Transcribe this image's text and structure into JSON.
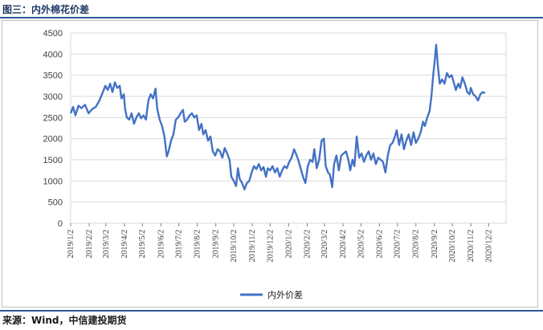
{
  "header": {
    "title": "图三：内外棉花价差"
  },
  "footer": {
    "source": "来源：Wind，中信建投期货"
  },
  "colors": {
    "series": "#4472c4",
    "rule": "#2f5597",
    "grid": "#d9d9d9",
    "title": "#1f3864"
  },
  "chart_data": {
    "type": "line",
    "grid": "horizontal",
    "legend": "bottom-center",
    "x_range": [
      "2019-01-02",
      "2020-12-31"
    ],
    "ylim": [
      0,
      4500
    ],
    "y_ticks": [
      0,
      500,
      1000,
      1500,
      2000,
      2500,
      3000,
      3500,
      4000,
      4500
    ],
    "x_tick_labels": [
      "2019/1/2",
      "2019/2/2",
      "2019/3/2",
      "2019/4/2",
      "2019/5/2",
      "2019/6/2",
      "2019/7/2",
      "2019/8/2",
      "2019/9/2",
      "2019/10/2",
      "2019/11/2",
      "2019/12/2",
      "2020/1/2",
      "2020/2/2",
      "2020/3/2",
      "2020/4/2",
      "2020/5/2",
      "2020/6/2",
      "2020/7/2",
      "2020/8/2",
      "2020/9/2",
      "2020/10/2",
      "2020/11/2",
      "2020/12/2"
    ],
    "series": [
      {
        "name": "内外价差",
        "points": [
          [
            "2019-01-02",
            2600
          ],
          [
            "2019-01-06",
            2750
          ],
          [
            "2019-01-10",
            2550
          ],
          [
            "2019-01-15",
            2780
          ],
          [
            "2019-01-20",
            2720
          ],
          [
            "2019-01-26",
            2800
          ],
          [
            "2019-02-01",
            2600
          ],
          [
            "2019-02-07",
            2700
          ],
          [
            "2019-02-13",
            2750
          ],
          [
            "2019-02-19",
            2900
          ],
          [
            "2019-02-25",
            3100
          ],
          [
            "2019-03-01",
            3250
          ],
          [
            "2019-03-05",
            3150
          ],
          [
            "2019-03-09",
            3300
          ],
          [
            "2019-03-13",
            3100
          ],
          [
            "2019-03-17",
            3330
          ],
          [
            "2019-03-21",
            3200
          ],
          [
            "2019-03-25",
            3250
          ],
          [
            "2019-03-28",
            2950
          ],
          [
            "2019-04-01",
            3050
          ],
          [
            "2019-04-03",
            2700
          ],
          [
            "2019-04-06",
            2500
          ],
          [
            "2019-04-10",
            2450
          ],
          [
            "2019-04-14",
            2600
          ],
          [
            "2019-04-18",
            2350
          ],
          [
            "2019-04-22",
            2500
          ],
          [
            "2019-04-26",
            2600
          ],
          [
            "2019-04-30",
            2480
          ],
          [
            "2019-05-04",
            2550
          ],
          [
            "2019-05-08",
            2450
          ],
          [
            "2019-05-12",
            2900
          ],
          [
            "2019-05-16",
            3050
          ],
          [
            "2019-05-20",
            2950
          ],
          [
            "2019-05-24",
            3180
          ],
          [
            "2019-05-27",
            2700
          ],
          [
            "2019-05-31",
            2450
          ],
          [
            "2019-06-04",
            2300
          ],
          [
            "2019-06-08",
            2050
          ],
          [
            "2019-06-12",
            1580
          ],
          [
            "2019-06-15",
            1700
          ],
          [
            "2019-06-19",
            1950
          ],
          [
            "2019-06-23",
            2100
          ],
          [
            "2019-06-27",
            2450
          ],
          [
            "2019-07-01",
            2500
          ],
          [
            "2019-07-05",
            2600
          ],
          [
            "2019-07-09",
            2680
          ],
          [
            "2019-07-12",
            2400
          ],
          [
            "2019-07-16",
            2450
          ],
          [
            "2019-07-20",
            2550
          ],
          [
            "2019-07-24",
            2600
          ],
          [
            "2019-07-28",
            2500
          ],
          [
            "2019-08-01",
            2550
          ],
          [
            "2019-08-05",
            2200
          ],
          [
            "2019-08-09",
            2350
          ],
          [
            "2019-08-12",
            2100
          ],
          [
            "2019-08-16",
            2200
          ],
          [
            "2019-08-20",
            1950
          ],
          [
            "2019-08-24",
            2050
          ],
          [
            "2019-08-28",
            1700
          ],
          [
            "2019-09-01",
            1600
          ],
          [
            "2019-09-05",
            1750
          ],
          [
            "2019-09-09",
            1700
          ],
          [
            "2019-09-13",
            1550
          ],
          [
            "2019-09-17",
            1780
          ],
          [
            "2019-09-21",
            1650
          ],
          [
            "2019-09-25",
            1500
          ],
          [
            "2019-09-28",
            1100
          ],
          [
            "2019-10-02",
            1000
          ],
          [
            "2019-10-06",
            880
          ],
          [
            "2019-10-09",
            1300
          ],
          [
            "2019-10-12",
            1050
          ],
          [
            "2019-10-16",
            950
          ],
          [
            "2019-10-20",
            800
          ],
          [
            "2019-10-24",
            950
          ],
          [
            "2019-10-28",
            1000
          ],
          [
            "2019-11-01",
            1200
          ],
          [
            "2019-11-05",
            1350
          ],
          [
            "2019-11-09",
            1280
          ],
          [
            "2019-11-13",
            1400
          ],
          [
            "2019-11-17",
            1250
          ],
          [
            "2019-11-21",
            1330
          ],
          [
            "2019-11-25",
            1100
          ],
          [
            "2019-11-28",
            1300
          ],
          [
            "2019-12-02",
            1250
          ],
          [
            "2019-12-06",
            1350
          ],
          [
            "2019-12-10",
            1200
          ],
          [
            "2019-12-14",
            1300
          ],
          [
            "2019-12-18",
            1100
          ],
          [
            "2019-12-22",
            1250
          ],
          [
            "2019-12-26",
            1350
          ],
          [
            "2019-12-30",
            1300
          ],
          [
            "2020-01-03",
            1450
          ],
          [
            "2020-01-07",
            1550
          ],
          [
            "2020-01-11",
            1750
          ],
          [
            "2020-01-14",
            1650
          ],
          [
            "2020-01-18",
            1500
          ],
          [
            "2020-01-22",
            1300
          ],
          [
            "2020-01-26",
            1100
          ],
          [
            "2020-01-30",
            950
          ],
          [
            "2020-02-03",
            1350
          ],
          [
            "2020-02-07",
            1500
          ],
          [
            "2020-02-11",
            1450
          ],
          [
            "2020-02-14",
            1750
          ],
          [
            "2020-02-18",
            1300
          ],
          [
            "2020-02-22",
            1500
          ],
          [
            "2020-02-26",
            1950
          ],
          [
            "2020-03-01",
            2000
          ],
          [
            "2020-03-04",
            1350
          ],
          [
            "2020-03-08",
            1200
          ],
          [
            "2020-03-11",
            1150
          ],
          [
            "2020-03-15",
            850
          ],
          [
            "2020-03-18",
            1400
          ],
          [
            "2020-03-22",
            1600
          ],
          [
            "2020-03-26",
            1250
          ],
          [
            "2020-03-30",
            1600
          ],
          [
            "2020-04-03",
            1650
          ],
          [
            "2020-04-07",
            1700
          ],
          [
            "2020-04-11",
            1500
          ],
          [
            "2020-04-14",
            1250
          ],
          [
            "2020-04-18",
            1500
          ],
          [
            "2020-04-21",
            1350
          ],
          [
            "2020-04-25",
            2050
          ],
          [
            "2020-04-29",
            1550
          ],
          [
            "2020-05-03",
            1650
          ],
          [
            "2020-05-07",
            1450
          ],
          [
            "2020-05-11",
            1600
          ],
          [
            "2020-05-15",
            1700
          ],
          [
            "2020-05-19",
            1500
          ],
          [
            "2020-05-23",
            1650
          ],
          [
            "2020-05-27",
            1400
          ],
          [
            "2020-05-31",
            1550
          ],
          [
            "2020-06-04",
            1500
          ],
          [
            "2020-06-08",
            1450
          ],
          [
            "2020-06-12",
            1200
          ],
          [
            "2020-06-16",
            1600
          ],
          [
            "2020-06-20",
            1850
          ],
          [
            "2020-06-24",
            1900
          ],
          [
            "2020-06-28",
            2050
          ],
          [
            "2020-07-01",
            2200
          ],
          [
            "2020-07-05",
            1850
          ],
          [
            "2020-07-09",
            2100
          ],
          [
            "2020-07-13",
            1750
          ],
          [
            "2020-07-17",
            1950
          ],
          [
            "2020-07-21",
            2100
          ],
          [
            "2020-07-25",
            1850
          ],
          [
            "2020-07-29",
            2150
          ],
          [
            "2020-08-02",
            1900
          ],
          [
            "2020-08-06",
            2000
          ],
          [
            "2020-08-10",
            2150
          ],
          [
            "2020-08-14",
            2400
          ],
          [
            "2020-08-17",
            2300
          ],
          [
            "2020-08-21",
            2500
          ],
          [
            "2020-08-25",
            2650
          ],
          [
            "2020-08-28",
            3000
          ],
          [
            "2020-08-31",
            3500
          ],
          [
            "2020-09-03",
            3900
          ],
          [
            "2020-09-05",
            4220
          ],
          [
            "2020-09-08",
            3700
          ],
          [
            "2020-09-11",
            3300
          ],
          [
            "2020-09-15",
            3400
          ],
          [
            "2020-09-19",
            3300
          ],
          [
            "2020-09-23",
            3550
          ],
          [
            "2020-09-27",
            3450
          ],
          [
            "2020-10-01",
            3500
          ],
          [
            "2020-10-04",
            3350
          ],
          [
            "2020-10-08",
            3150
          ],
          [
            "2020-10-12",
            3300
          ],
          [
            "2020-10-15",
            3200
          ],
          [
            "2020-10-19",
            3450
          ],
          [
            "2020-10-23",
            3300
          ],
          [
            "2020-10-27",
            3100
          ],
          [
            "2020-10-31",
            3050
          ],
          [
            "2020-11-02",
            3200
          ],
          [
            "2020-11-06",
            3050
          ],
          [
            "2020-11-10",
            3000
          ],
          [
            "2020-11-14",
            2900
          ],
          [
            "2020-11-18",
            3050
          ],
          [
            "2020-11-22",
            3100
          ],
          [
            "2020-11-26",
            3080
          ]
        ]
      }
    ]
  }
}
